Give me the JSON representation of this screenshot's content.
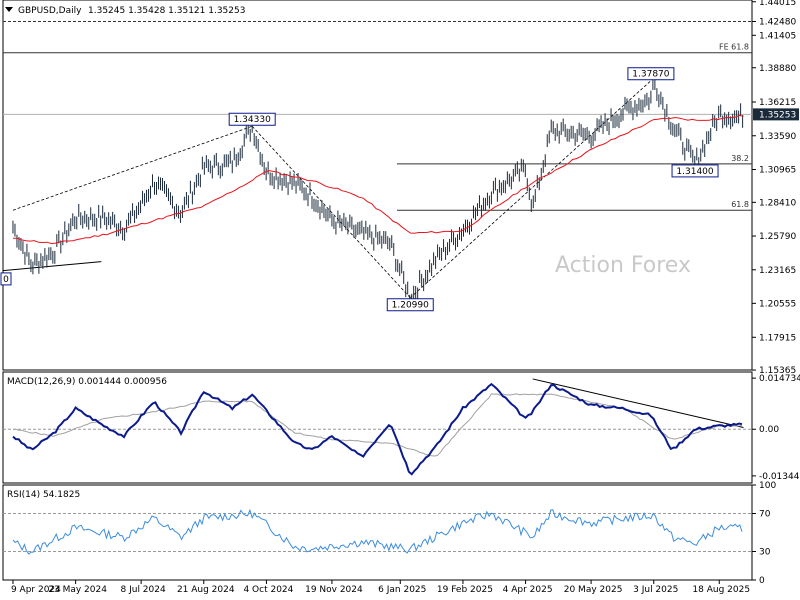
{
  "header": {
    "symbol": "GBPUSD,Daily",
    "ohlc": "1.35245 1.35428 1.35121 1.35253"
  },
  "watermark": "Action Forex",
  "colors": {
    "price_bar": "#1a2a3a",
    "ema": "#e8141b",
    "macd": "#0b1a8c",
    "macd_signal": "#a0a0a0",
    "rsi": "#3c8dde",
    "label_border": "#0b1a8c",
    "current_price_bg": "#1a2a3a"
  },
  "chart_data": [
    {
      "type": "line",
      "panel": "price",
      "title": "GBPUSD,Daily",
      "x_labels": [
        "9 Apr 2024",
        "23 May 2024",
        "8 Jul 2024",
        "21 Aug 2024",
        "4 Oct 2024",
        "19 Nov 2024",
        "6 Jan 2025",
        "19 Feb 2025",
        "4 Apr 2025",
        "20 May 2025",
        "3 Jul 2025",
        "18 Aug 2025"
      ],
      "y_ticks": [
        "1.44015",
        "1.42480",
        "1.41405",
        "1.38880",
        "1.36215",
        "1.35253",
        "1.33590",
        "1.30965",
        "1.28410",
        "1.25790",
        "1.23165",
        "1.20555",
        "1.17915",
        "1.15365"
      ],
      "ylim": [
        1.1537,
        1.4415
      ],
      "current_price": "1.35253",
      "series": [
        {
          "name": "",
          "kind": "price",
          "x": [
            "2024-04-09",
            "2024-04-22",
            "2024-05-08",
            "2024-05-23",
            "2024-06-12",
            "2024-06-26",
            "2024-07-08",
            "2024-07-17",
            "2024-08-05",
            "2024-08-21",
            "2024-09-10",
            "2024-09-24",
            "2024-10-04",
            "2024-10-24",
            "2024-11-05",
            "2024-11-19",
            "2024-12-10",
            "2024-12-30",
            "2025-01-13",
            "2025-01-31",
            "2025-02-19",
            "2025-03-11",
            "2025-04-04",
            "2025-04-09",
            "2025-04-22",
            "2025-05-20",
            "2025-06-12",
            "2025-07-01",
            "2025-07-03",
            "2025-07-16",
            "2025-08-01",
            "2025-08-18",
            "2025-09-01",
            "2025-09-04"
          ],
          "y": [
            1.265,
            1.235,
            1.246,
            1.272,
            1.272,
            1.264,
            1.282,
            1.3,
            1.276,
            1.311,
            1.315,
            1.3433,
            1.308,
            1.2985,
            1.289,
            1.27,
            1.26,
            1.252,
            1.2099,
            1.24,
            1.263,
            1.292,
            1.31,
            1.28,
            1.34,
            1.336,
            1.355,
            1.365,
            1.3787,
            1.344,
            1.314,
            1.353,
            1.35,
            1.3525
          ]
        },
        {
          "name": "",
          "kind": "ema",
          "x": [
            "2024-04-09",
            "2024-05-08",
            "2024-06-12",
            "2024-07-17",
            "2024-08-21",
            "2024-09-24",
            "2024-10-04",
            "2024-11-05",
            "2024-12-10",
            "2025-01-13",
            "2025-02-19",
            "2025-03-11",
            "2025-04-04",
            "2025-05-20",
            "2025-07-03",
            "2025-07-16",
            "2025-08-01",
            "2025-08-18",
            "2025-09-04"
          ],
          "y": [
            1.256,
            1.252,
            1.259,
            1.27,
            1.281,
            1.301,
            1.309,
            1.301,
            1.288,
            1.26,
            1.262,
            1.278,
            1.296,
            1.325,
            1.348,
            1.35,
            1.348,
            1.349,
            1.3515
          ]
        }
      ],
      "annotations": [
        {
          "text": "1.34330",
          "x": "2024-09-24",
          "y": 1.3433
        },
        {
          "text": "1.20990",
          "x": "2025-01-13",
          "y": 1.2099
        },
        {
          "text": "1.37870",
          "x": "2025-07-01",
          "y": 1.3787
        },
        {
          "text": "1.31400",
          "x": "2025-08-01",
          "y": 1.314
        },
        {
          "text": "0",
          "x": "2024-04-22",
          "y": 1.23
        }
      ],
      "level_lines": [
        {
          "y": 1.4248,
          "style": "dashed",
          "label": ""
        },
        {
          "y": 1.4005,
          "style": "solid",
          "label": "FE 61.8"
        },
        {
          "y": 1.3525,
          "style": "solid",
          "label": ""
        },
        {
          "y": 1.314,
          "style": "solid",
          "label": "38.2"
        },
        {
          "y": 1.278,
          "style": "solid",
          "label": "61.8"
        }
      ]
    },
    {
      "type": "line",
      "panel": "macd",
      "title": "MACD(12,26,9) 0.001444 0.000956",
      "y_ticks": [
        "0.014734",
        "0.00",
        "-0.013442"
      ],
      "ylim": [
        -0.0155,
        0.0165
      ],
      "series": [
        {
          "name": "",
          "kind": "macd",
          "x": [
            "2024-04-09",
            "2024-04-22",
            "2024-05-08",
            "2024-05-23",
            "2024-06-12",
            "2024-06-26",
            "2024-07-17",
            "2024-08-05",
            "2024-08-21",
            "2024-09-10",
            "2024-09-24",
            "2024-10-24",
            "2024-11-05",
            "2024-11-19",
            "2024-12-10",
            "2024-12-30",
            "2025-01-13",
            "2025-01-31",
            "2025-02-19",
            "2025-03-11",
            "2025-04-04",
            "2025-04-09",
            "2025-04-22",
            "2025-05-20",
            "2025-06-12",
            "2025-07-01",
            "2025-07-16",
            "2025-08-01",
            "2025-08-18",
            "2025-09-04"
          ],
          "y": [
            -0.002,
            -0.006,
            -0.001,
            0.006,
            0.001,
            -0.002,
            0.008,
            -0.001,
            0.011,
            0.006,
            0.01,
            -0.004,
            -0.006,
            -0.002,
            -0.008,
            0.002,
            -0.013,
            -0.005,
            0.006,
            0.013,
            0.003,
            0.005,
            0.013,
            0.007,
            0.006,
            0.004,
            -0.006,
            0.0,
            0.001,
            0.0014
          ]
        },
        {
          "name": "",
          "kind": "signal",
          "x": [
            "2024-04-09",
            "2024-05-08",
            "2024-06-12",
            "2024-07-17",
            "2024-08-21",
            "2024-09-24",
            "2024-10-24",
            "2024-11-19",
            "2024-12-30",
            "2025-01-31",
            "2025-03-11",
            "2025-04-22",
            "2025-06-12",
            "2025-07-16",
            "2025-08-18",
            "2025-09-04"
          ],
          "y": [
            0.0,
            -0.002,
            0.003,
            0.005,
            0.008,
            0.008,
            -0.001,
            -0.003,
            -0.004,
            -0.008,
            0.01,
            0.01,
            0.006,
            -0.003,
            0.001,
            0.001
          ]
        }
      ]
    },
    {
      "type": "line",
      "panel": "rsi",
      "title": "RSI(14) 54.1825",
      "y_ticks": [
        "100",
        "70",
        "30",
        "0"
      ],
      "ylim": [
        0,
        100
      ],
      "series": [
        {
          "name": "",
          "kind": "rsi",
          "x": [
            "2024-04-09",
            "2024-04-22",
            "2024-05-23",
            "2024-06-26",
            "2024-07-17",
            "2024-08-05",
            "2024-08-21",
            "2024-09-24",
            "2024-10-24",
            "2024-11-05",
            "2024-12-10",
            "2025-01-13",
            "2025-02-19",
            "2025-03-11",
            "2025-04-09",
            "2025-04-22",
            "2025-05-20",
            "2025-06-12",
            "2025-07-03",
            "2025-07-16",
            "2025-08-01",
            "2025-08-18",
            "2025-09-04"
          ],
          "y": [
            40,
            30,
            55,
            45,
            65,
            45,
            65,
            70,
            35,
            33,
            40,
            32,
            60,
            70,
            45,
            70,
            60,
            65,
            68,
            45,
            38,
            55,
            54
          ]
        }
      ],
      "levels": [
        70,
        30
      ]
    }
  ]
}
